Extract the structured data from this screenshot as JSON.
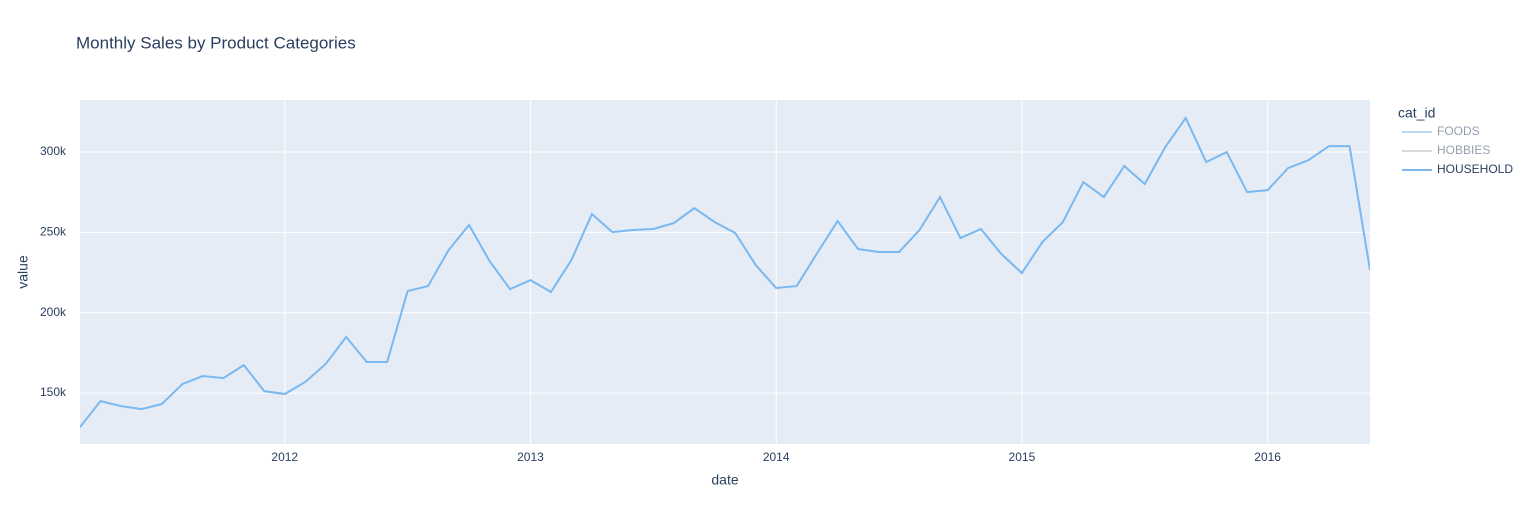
{
  "chart_data": {
    "type": "line",
    "title": "Monthly Sales by Product Categories",
    "x_label": "date",
    "y_label": "value",
    "legend_title": "cat_id",
    "x": [
      "2011-03",
      "2011-04",
      "2011-05",
      "2011-06",
      "2011-07",
      "2011-08",
      "2011-09",
      "2011-10",
      "2011-11",
      "2011-12",
      "2012-01",
      "2012-02",
      "2012-03",
      "2012-04",
      "2012-05",
      "2012-06",
      "2012-07",
      "2012-08",
      "2012-09",
      "2012-10",
      "2012-11",
      "2012-12",
      "2013-01",
      "2013-02",
      "2013-03",
      "2013-04",
      "2013-05",
      "2013-06",
      "2013-07",
      "2013-08",
      "2013-09",
      "2013-10",
      "2013-11",
      "2013-12",
      "2014-01",
      "2014-02",
      "2014-03",
      "2014-04",
      "2014-05",
      "2014-06",
      "2014-07",
      "2014-08",
      "2014-09",
      "2014-10",
      "2014-11",
      "2014-12",
      "2015-01",
      "2015-02",
      "2015-03",
      "2015-04",
      "2015-05",
      "2015-06",
      "2015-07",
      "2015-08",
      "2015-09",
      "2015-10",
      "2015-11",
      "2015-12",
      "2016-01",
      "2016-02",
      "2016-03",
      "2016-04",
      "2016-05",
      "2016-06"
    ],
    "series": [
      {
        "name": "FOODS",
        "color": "#7ab8f0",
        "visible": "legendonly"
      },
      {
        "name": "HOBBIES",
        "color": "#b8b8b8",
        "visible": "legendonly"
      },
      {
        "name": "HOUSEHOLD",
        "color": "#7ab8f0",
        "visible": true,
        "values": [
          128800,
          145000,
          141900,
          140000,
          143200,
          155600,
          160600,
          159300,
          167400,
          151200,
          149400,
          156900,
          168100,
          184900,
          169300,
          169300,
          213500,
          216600,
          239000,
          254600,
          232200,
          214700,
          220300,
          212900,
          232800,
          261400,
          250200,
          251500,
          252100,
          255800,
          265100,
          256400,
          249600,
          229700,
          215400,
          216600,
          237100,
          257100,
          239600,
          237800,
          237800,
          251500,
          272000,
          246500,
          252100,
          236500,
          224700,
          244000,
          256400,
          281300,
          272000,
          291300,
          280100,
          303100,
          321200,
          293800,
          300000,
          275100,
          276300,
          290000,
          295000,
          303700,
          303700,
          226600
        ]
      }
    ],
    "xlim": [
      "2011-03",
      "2016-06"
    ],
    "xticks": [
      {
        "value": "2012-01",
        "label": "2012"
      },
      {
        "value": "2013-01",
        "label": "2013"
      },
      {
        "value": "2014-01",
        "label": "2014"
      },
      {
        "value": "2015-01",
        "label": "2015"
      },
      {
        "value": "2016-01",
        "label": "2016"
      }
    ],
    "ylim": [
      118300,
      332400
    ],
    "yticks": [
      {
        "value": 150000,
        "label": "150k"
      },
      {
        "value": 200000,
        "label": "200k"
      },
      {
        "value": 250000,
        "label": "250k"
      },
      {
        "value": 300000,
        "label": "300k"
      }
    ],
    "grid": true,
    "legend_position": "right",
    "background": "#e5ecf6"
  }
}
